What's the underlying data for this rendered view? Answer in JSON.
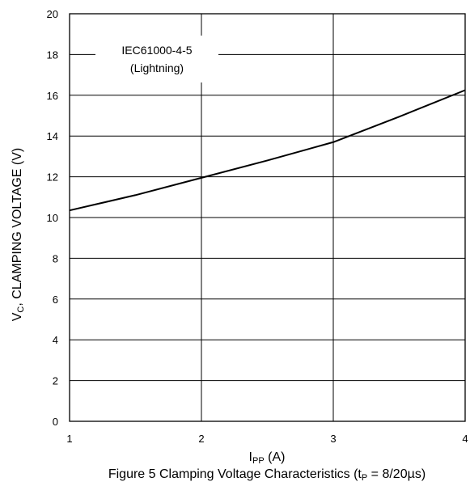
{
  "chart_data": {
    "type": "line",
    "title": "",
    "xlabel": {
      "main": "I",
      "sub": "PP",
      "rest": " (A)"
    },
    "ylabel": {
      "main": "V",
      "sub": "C",
      "rest": ", CLAMPING VOLTAGE (V)"
    },
    "xlim": [
      1,
      4
    ],
    "ylim": [
      0,
      20
    ],
    "x_ticks": [
      1,
      2,
      3,
      4
    ],
    "y_ticks": [
      0,
      2,
      4,
      6,
      8,
      10,
      12,
      14,
      16,
      18,
      20
    ],
    "grid": true,
    "series": [
      {
        "x": [
          1,
          1.5,
          2,
          2.5,
          3,
          3.5,
          4
        ],
        "y": [
          10.35,
          11.1,
          11.95,
          12.8,
          13.7,
          14.95,
          16.25
        ]
      }
    ],
    "annotation": {
      "line1": "IEC61000-4-5",
      "line2": "(Lightning)"
    },
    "caption": {
      "prefix": "Figure 5 Clamping Voltage Characteristics (t",
      "sub": "P",
      "suffix": " = 8/20µs)"
    }
  }
}
